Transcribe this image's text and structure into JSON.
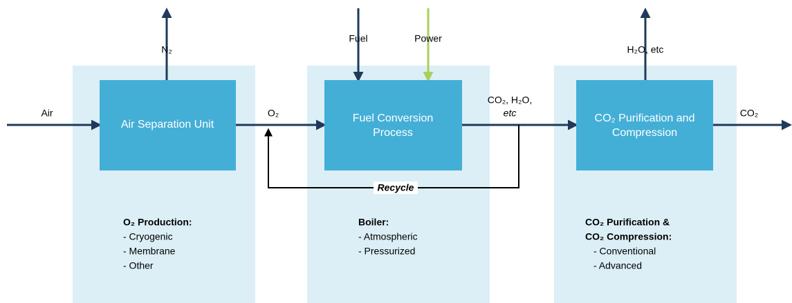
{
  "nodes": [
    {
      "label": [
        "Air Separation Unit"
      ],
      "heading": [
        "O₂ Production:"
      ],
      "items": [
        "- Cryogenic",
        "- Membrane",
        "- Other"
      ]
    },
    {
      "label": [
        "Fuel Conversion",
        "Process"
      ],
      "heading": [
        "Boiler:"
      ],
      "items": [
        "- Atmospheric",
        "- Pressurized"
      ]
    },
    {
      "label": [
        "CO₂ Purification and",
        "Compression"
      ],
      "heading": [
        "CO₂ Purification &",
        "CO₂ Compression:"
      ],
      "items": [
        "- Conventional",
        "- Advanced"
      ]
    }
  ],
  "streams": {
    "air": "Air",
    "n2": "N₂",
    "o2": "O₂",
    "fuel": "Fuel",
    "power": "Power",
    "flue": [
      "CO₂, H₂O,",
      "etc"
    ],
    "h2o": "H₂O, etc",
    "co2": "CO₂",
    "recycle": "Recycle"
  }
}
